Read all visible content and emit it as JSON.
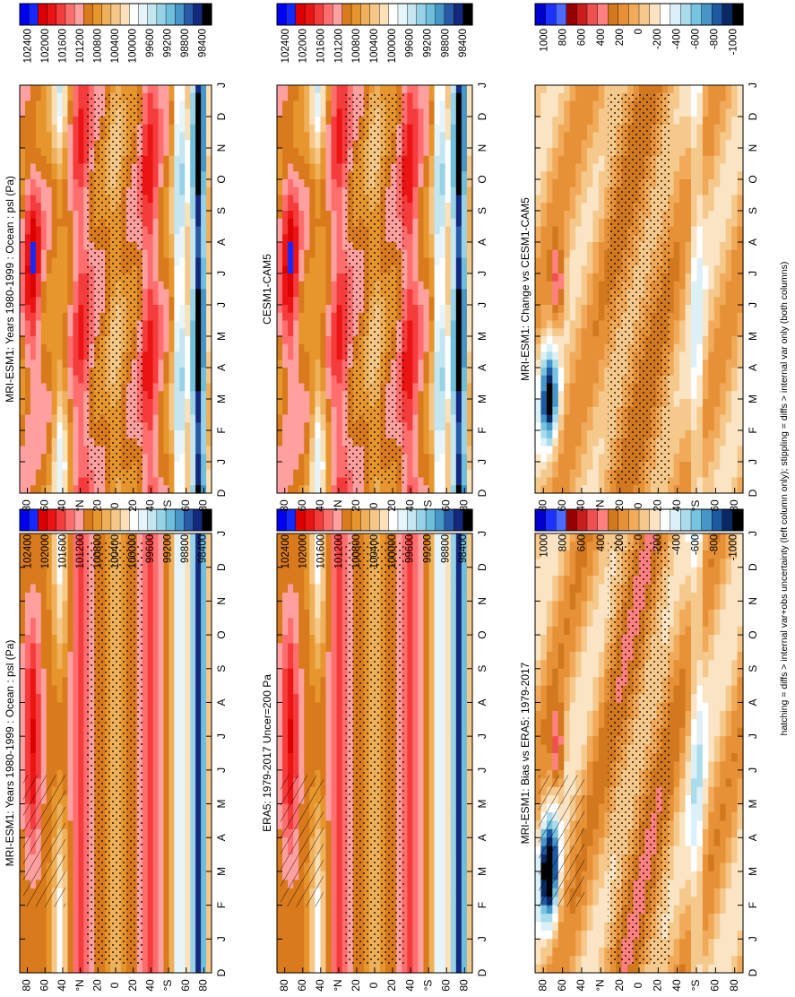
{
  "figure": {
    "footnote": "hatching = diffs > internal var+obs uncertainty (left column only); stippling = diffs > internal var only (both columns)"
  },
  "chart_data": [
    {
      "type": "heatmap",
      "title": "MRI-ESM1: Years 1980-1999 : Ocean : psl (Pa)",
      "month_ticks": [
        "D",
        "J",
        "F",
        "M",
        "A",
        "M",
        "J",
        "J",
        "A",
        "S",
        "O",
        "N",
        "D",
        "J"
      ],
      "lat_ticks": [
        "80",
        "60",
        "40",
        "°N",
        "20",
        "0",
        "20",
        "40",
        "°S",
        "60",
        "80"
      ],
      "colorbar_labels": [
        "102400",
        "102000",
        "101600",
        "101200",
        "100800",
        "100400",
        "100000",
        "99600",
        "99200",
        "98800",
        "98400"
      ],
      "field": "absolute",
      "hatching": true
    },
    {
      "type": "heatmap",
      "title": "MRI-ESM1: Years 1980-1999 : Ocean : psl (Pa)",
      "month_ticks": [
        "D",
        "J",
        "F",
        "M",
        "A",
        "M",
        "J",
        "J",
        "A",
        "S",
        "O",
        "N",
        "D",
        "J"
      ],
      "lat_ticks": [
        "80",
        "60",
        "40",
        "°N",
        "20",
        "0",
        "20",
        "40",
        "°S",
        "60",
        "80"
      ],
      "colorbar_labels": [
        "102400",
        "102000",
        "101600",
        "101200",
        "100800",
        "100400",
        "100000",
        "99600",
        "99200",
        "98800",
        "98400"
      ],
      "field": "absolute",
      "hatching": false
    },
    {
      "type": "heatmap",
      "title": "ERA5: 1979-2017 Uncer=200 Pa",
      "month_ticks": [
        "D",
        "J",
        "F",
        "M",
        "A",
        "M",
        "J",
        "J",
        "A",
        "S",
        "O",
        "N",
        "D",
        "J"
      ],
      "lat_ticks": [
        "80",
        "60",
        "40",
        "°N",
        "20",
        "0",
        "20",
        "40",
        "°S",
        "60",
        "80"
      ],
      "colorbar_labels": [
        "102400",
        "102000",
        "101600",
        "101200",
        "100800",
        "100400",
        "100000",
        "99600",
        "99200",
        "98800",
        "98400"
      ],
      "field": "absolute",
      "hatching": true
    },
    {
      "type": "heatmap",
      "title": "CESM1-CAM5",
      "month_ticks": [
        "D",
        "J",
        "F",
        "M",
        "A",
        "M",
        "J",
        "J",
        "A",
        "S",
        "O",
        "N",
        "D",
        "J"
      ],
      "lat_ticks": [
        "80",
        "60",
        "40",
        "°N",
        "20",
        "0",
        "20",
        "40",
        "°S",
        "60",
        "80"
      ],
      "colorbar_labels": [
        "102400",
        "102000",
        "101600",
        "101200",
        "100800",
        "100400",
        "100000",
        "99600",
        "99200",
        "98800",
        "98400"
      ],
      "field": "absolute",
      "hatching": false
    },
    {
      "type": "heatmap",
      "title": "MRI-ESM1: Bias vs ERA5: 1979-2017",
      "month_ticks": [
        "D",
        "J",
        "F",
        "M",
        "A",
        "M",
        "J",
        "J",
        "A",
        "S",
        "O",
        "N",
        "D",
        "J"
      ],
      "lat_ticks": [
        "80",
        "60",
        "40",
        "°N",
        "20",
        "0",
        "20",
        "40",
        "°S",
        "60",
        "80"
      ],
      "colorbar_labels": [
        "1000",
        "800",
        "600",
        "400",
        "200",
        "0",
        "-200",
        "-400",
        "-600",
        "-800",
        "-1000"
      ],
      "field": "difference",
      "hatching": true
    },
    {
      "type": "heatmap",
      "title": "MRI-ESM1: Change vs CESM1-CAM5",
      "month_ticks": [
        "D",
        "J",
        "F",
        "M",
        "A",
        "M",
        "J",
        "J",
        "A",
        "S",
        "O",
        "N",
        "D",
        "J"
      ],
      "lat_ticks": [
        "80",
        "60",
        "40",
        "°N",
        "20",
        "0",
        "20",
        "40",
        "°S",
        "60",
        "80"
      ],
      "colorbar_labels": [
        "1000",
        "800",
        "600",
        "400",
        "200",
        "0",
        "-200",
        "-400",
        "-600",
        "-800",
        "-1000"
      ],
      "field": "difference",
      "hatching": false
    }
  ],
  "colors": {
    "absolute_scale": [
      "#0000f0",
      "#1428ff",
      "#dc0000",
      "#eb1414",
      "#f53c3c",
      "#ff6e6e",
      "#ffa0a0",
      "#d97a1c",
      "#e6962d",
      "#eeb05a",
      "#f5c88a",
      "#fbe0b8",
      "#ffffff",
      "#e6f5fa",
      "#c3e6f0",
      "#98d2e6",
      "#6ebedc",
      "#4696c8",
      "#285aa5",
      "#14287d",
      "#000000"
    ],
    "diff_scale": [
      "#0000cd",
      "#1e32ff",
      "#4b6bff",
      "#960000",
      "#c81e1e",
      "#f05050",
      "#ff8080",
      "#d2781e",
      "#e69137",
      "#f0aa5a",
      "#f5c88c",
      "#fbe4c4",
      "#ffffff",
      "#dcf0f8",
      "#aadcec",
      "#78c3e0",
      "#4696c8",
      "#1e5aa0",
      "#0a2864",
      "#000000"
    ]
  }
}
